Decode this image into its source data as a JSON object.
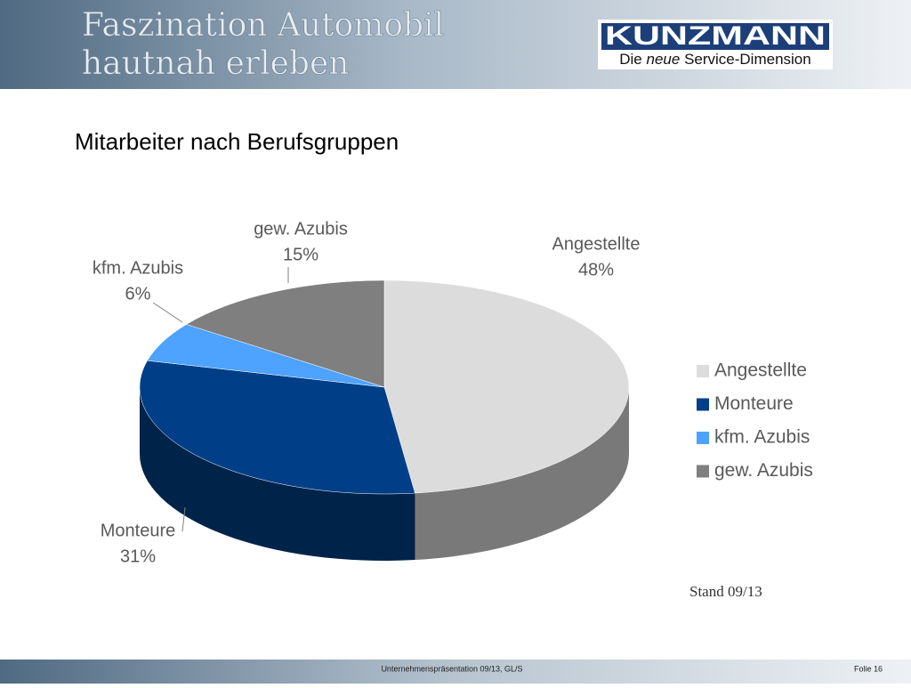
{
  "header": {
    "title_lines": [
      "Faszination Automobil",
      "hautnah erleben"
    ],
    "logo": {
      "name": "KUNZMANN",
      "tagline_start": "Die",
      "tagline_italic": "neue",
      "tagline_end": "Service-Dimension"
    }
  },
  "chart_data": {
    "type": "pie",
    "title": "Mitarbeiter nach Berufsgruppen",
    "categories": [
      "Angestellte",
      "Monteure",
      "kfm. Azubis",
      "gew. Azubis"
    ],
    "values": [
      48,
      31,
      6,
      15
    ],
    "value_labels": [
      "48%",
      "31%",
      "6%",
      "15%"
    ],
    "colors": [
      "#dcdcdc",
      "#003f87",
      "#4da3ff",
      "#7f7f7f"
    ],
    "legend": "right"
  },
  "note": "Stand 09/13",
  "footer": {
    "center": "Unternehmenspräsentation 09/13, GL/S",
    "page": "Folie 16"
  }
}
